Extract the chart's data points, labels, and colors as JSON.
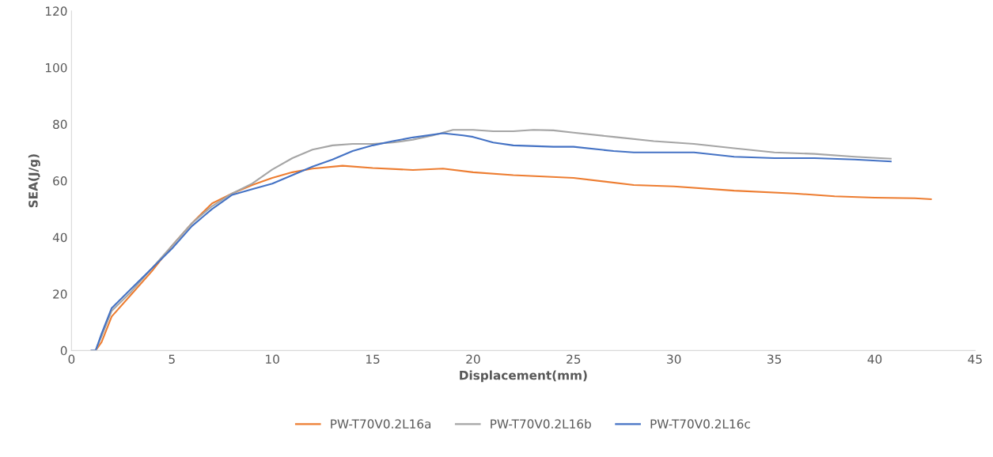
{
  "chart_data": {
    "type": "line",
    "xlabel": "Displacement(mm)",
    "ylabel": "SEA(J/g)",
    "xlim": [
      0,
      45
    ],
    "xticks": [
      0,
      5,
      10,
      15,
      20,
      25,
      30,
      35,
      40,
      45
    ],
    "ylim": [
      0,
      120
    ],
    "yticks": [
      0,
      20,
      40,
      60,
      80,
      100,
      120
    ],
    "grid": false,
    "legend": "bottom",
    "marker": "none",
    "line_style": "solid",
    "series": [
      {
        "name": "PW-T70V0.2L16a",
        "color": "#ed7d31",
        "x": [
          1.0,
          1.2,
          1.5,
          2,
          3,
          4,
          5,
          6,
          7,
          8,
          9,
          10,
          11,
          12,
          13.5,
          15,
          17,
          18.5,
          20,
          22,
          25,
          28,
          30,
          33,
          36,
          38,
          40,
          42,
          42.8
        ],
        "values": [
          0,
          0,
          3,
          12,
          20,
          28,
          37,
          45,
          52,
          55.5,
          58.5,
          61,
          63,
          64.3,
          65.3,
          64.5,
          63.8,
          64.3,
          63,
          62,
          61,
          58.5,
          58,
          56.5,
          55.5,
          54.5,
          54,
          53.8,
          53.5
        ]
      },
      {
        "name": "PW-T70V0.2L16b",
        "color": "#a5a5a5",
        "x": [
          1.0,
          1.2,
          1.5,
          2,
          3,
          4,
          5,
          6,
          7,
          8,
          9,
          10,
          11,
          12,
          13,
          14,
          15,
          16,
          17,
          18,
          19,
          20,
          21,
          22,
          23,
          24,
          25,
          27,
          29,
          31,
          33,
          35,
          37,
          39,
          40.8
        ],
        "values": [
          0,
          0,
          5,
          14,
          21,
          29,
          37,
          45,
          51,
          55.5,
          59,
          64,
          68,
          71,
          72.5,
          73,
          73,
          73.5,
          74.5,
          76,
          78,
          78,
          77.5,
          77.5,
          78,
          77.8,
          77,
          75.5,
          74,
          73,
          71.5,
          70,
          69.5,
          68.5,
          67.8
        ]
      },
      {
        "name": "PW-T70V0.2L16c",
        "color": "#4472c4",
        "x": [
          1.0,
          1.2,
          1.5,
          2,
          3,
          4,
          5,
          6,
          7,
          8,
          9,
          10,
          11,
          12,
          13,
          14,
          15,
          16,
          17,
          18.5,
          19.5,
          20,
          21,
          22,
          24,
          25,
          27,
          28,
          30,
          31,
          33,
          35,
          37,
          39,
          40.8
        ],
        "values": [
          0,
          0,
          6,
          15,
          22,
          29,
          36,
          44,
          50,
          55,
          57,
          59,
          62,
          65,
          67.5,
          70.5,
          72.5,
          74,
          75.3,
          76.8,
          76,
          75.5,
          73.5,
          72.5,
          72,
          72,
          70.5,
          70,
          70,
          70,
          68.5,
          68,
          68,
          67.5,
          66.8
        ]
      }
    ]
  }
}
